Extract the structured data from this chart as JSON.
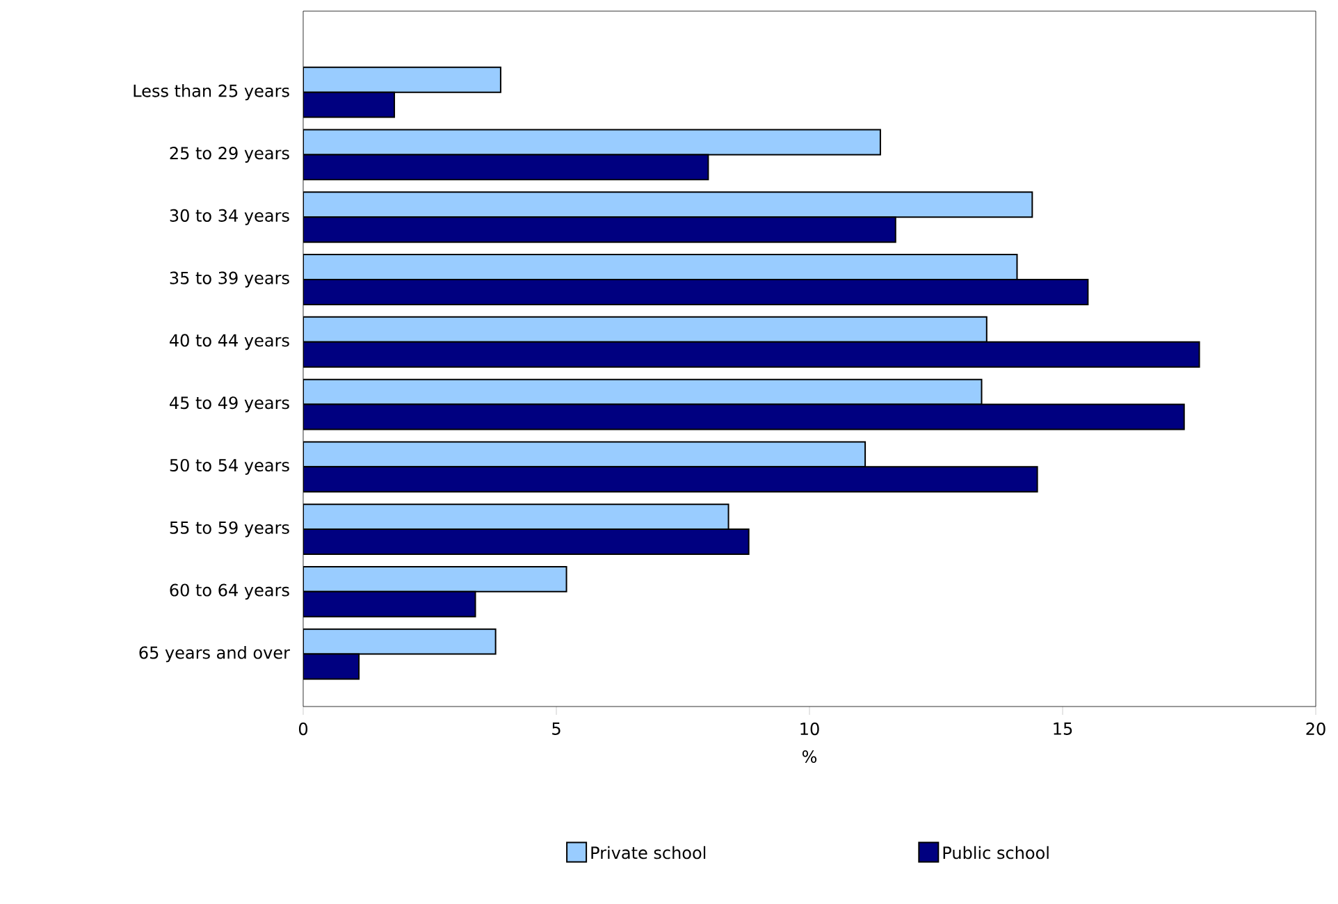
{
  "chart_data": {
    "type": "bar",
    "orientation": "horizontal",
    "xlabel": "%",
    "categories": [
      "Less than 25 years",
      "25 to 29 years",
      "30 to 34 years",
      "35 to 39 years",
      "40 to 44 years",
      "45 to 49 years",
      "50 to 54 years",
      "55 to 59 years",
      "60 to 64 years",
      "65 years and over"
    ],
    "series": [
      {
        "name": "Private school",
        "color": "#99ccff",
        "values": [
          3.9,
          11.4,
          14.4,
          14.1,
          13.5,
          13.4,
          11.1,
          8.4,
          5.2,
          3.8
        ]
      },
      {
        "name": "Public school",
        "color": "#000080",
        "values": [
          1.8,
          8.0,
          11.7,
          15.5,
          17.7,
          17.4,
          14.5,
          8.8,
          3.4,
          1.1
        ]
      }
    ],
    "xlim": [
      0,
      20
    ],
    "xticks": [
      0,
      5,
      10,
      15,
      20
    ],
    "legend": "bottom",
    "grid": false
  }
}
